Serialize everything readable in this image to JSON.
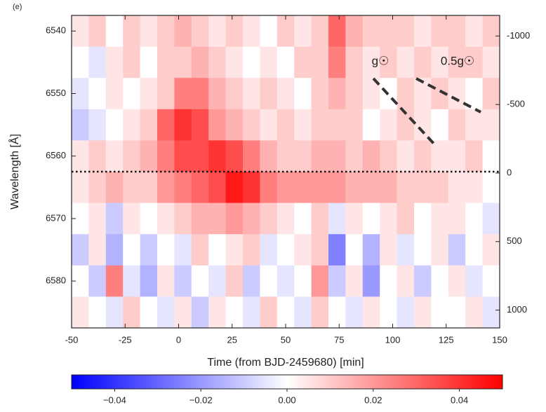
{
  "chart_data": {
    "type": "heatmap",
    "panel_label": "(e)",
    "xlabel": "Time (from BJD-2459680) [min]",
    "ylabel": "Wavelength [Å]",
    "colormap": "bwr",
    "x_bins": [
      -50,
      -42,
      -34,
      -26,
      -18,
      -10,
      -2,
      6,
      14,
      22,
      30,
      38,
      46,
      54,
      62,
      70,
      78,
      86,
      94,
      102,
      110,
      118,
      126,
      134,
      142,
      150
    ],
    "y_bins": [
      6537.5,
      6542.5,
      6547.5,
      6552.5,
      6557.5,
      6562.5,
      6567.5,
      6572.5,
      6577.5,
      6582.5,
      6587.5
    ],
    "values": [
      [
        0.005,
        0.01,
        0.0,
        0.01,
        0.005,
        0.01,
        0.015,
        0.01,
        0.005,
        0.01,
        0.005,
        0.0,
        0.01,
        0.005,
        0.01,
        0.03,
        0.015,
        0.01,
        0.01,
        0.01,
        0.005,
        0.01,
        0.01,
        0.005,
        0.01
      ],
      [
        0.0,
        -0.005,
        0.005,
        0.01,
        0.0,
        0.01,
        0.01,
        0.015,
        0.01,
        0.005,
        0.0,
        0.005,
        0.0,
        0.01,
        0.01,
        0.025,
        0.01,
        0.005,
        0.01,
        0.005,
        0.01,
        0.005,
        0.01,
        0.01,
        0.005
      ],
      [
        -0.005,
        0.0,
        0.005,
        0.0,
        0.005,
        0.01,
        0.025,
        0.025,
        0.015,
        0.01,
        0.005,
        0.01,
        0.005,
        0.0,
        0.01,
        0.015,
        0.01,
        0.005,
        0.0,
        0.01,
        0.005,
        0.01,
        0.005,
        0.0,
        0.01
      ],
      [
        -0.01,
        -0.005,
        0.0,
        0.005,
        0.01,
        0.03,
        0.04,
        0.035,
        0.02,
        0.015,
        0.01,
        0.005,
        0.01,
        0.005,
        0.01,
        0.01,
        0.01,
        0.0,
        0.005,
        0.01,
        0.005,
        0.0,
        0.01,
        0.005,
        0.005
      ],
      [
        0.005,
        0.01,
        0.005,
        0.01,
        0.015,
        0.025,
        0.035,
        0.035,
        0.04,
        0.035,
        0.025,
        0.015,
        0.01,
        0.01,
        0.015,
        0.015,
        0.01,
        0.015,
        0.01,
        0.005,
        0.01,
        0.005,
        0.005,
        0.01,
        0.0
      ],
      [
        0.005,
        0.01,
        0.015,
        0.01,
        0.01,
        0.02,
        0.025,
        0.03,
        0.035,
        0.045,
        0.04,
        0.025,
        0.02,
        0.02,
        0.02,
        0.02,
        0.015,
        0.015,
        0.015,
        0.01,
        0.01,
        0.01,
        0.005,
        0.005,
        0.0
      ],
      [
        0.0,
        0.005,
        -0.01,
        0.005,
        0.0,
        0.005,
        0.01,
        0.015,
        0.015,
        0.02,
        0.015,
        0.01,
        0.005,
        0.0,
        0.01,
        -0.005,
        0.005,
        0.0,
        0.005,
        0.01,
        0.0,
        0.005,
        0.005,
        0.0,
        -0.005
      ],
      [
        -0.01,
        0.005,
        -0.015,
        0.0,
        -0.01,
        0.0,
        -0.005,
        0.01,
        0.0,
        0.005,
        0.01,
        -0.005,
        0.0,
        0.005,
        0.01,
        -0.025,
        0.0,
        -0.015,
        0.005,
        -0.005,
        0.0,
        0.005,
        -0.01,
        0.0,
        0.005
      ],
      [
        0.0,
        -0.01,
        0.025,
        -0.005,
        -0.015,
        0.005,
        -0.01,
        0.0,
        -0.005,
        0.01,
        -0.01,
        0.0,
        -0.005,
        0.0,
        0.02,
        -0.01,
        0.005,
        -0.02,
        0.0,
        0.005,
        -0.01,
        0.0,
        0.005,
        -0.005,
        0.0
      ],
      [
        0.005,
        0.0,
        -0.005,
        0.01,
        0.0,
        -0.005,
        0.005,
        -0.01,
        0.005,
        0.0,
        -0.005,
        0.01,
        0.0,
        -0.005,
        0.01,
        0.0,
        -0.005,
        0.005,
        0.0,
        -0.005,
        0.005,
        0.0,
        0.0,
        0.005,
        -0.005
      ]
    ],
    "xlim": [
      -50,
      150
    ],
    "xticks": [
      -50,
      -25,
      0,
      25,
      50,
      75,
      100,
      125,
      150
    ],
    "ylim": [
      6587.5,
      6537.5
    ],
    "yticks": [
      6540,
      6550,
      6560,
      6570,
      6580
    ],
    "y2lim": [
      1130,
      -1150
    ],
    "y2ticks": [
      -1000,
      -500,
      0,
      500,
      1000
    ],
    "colorbar": {
      "clim": [
        -0.05,
        0.05
      ],
      "ticks": [
        {
          "value": -0.04,
          "label": "−0.04"
        },
        {
          "value": -0.02,
          "label": "−0.02"
        },
        {
          "value": 0,
          "label": "0.00"
        },
        {
          "value": 0.02,
          "label": "0.02"
        },
        {
          "value": 0.04,
          "label": "0.04"
        }
      ]
    },
    "annotations": [
      "g☉",
      "0.5g☉"
    ]
  }
}
